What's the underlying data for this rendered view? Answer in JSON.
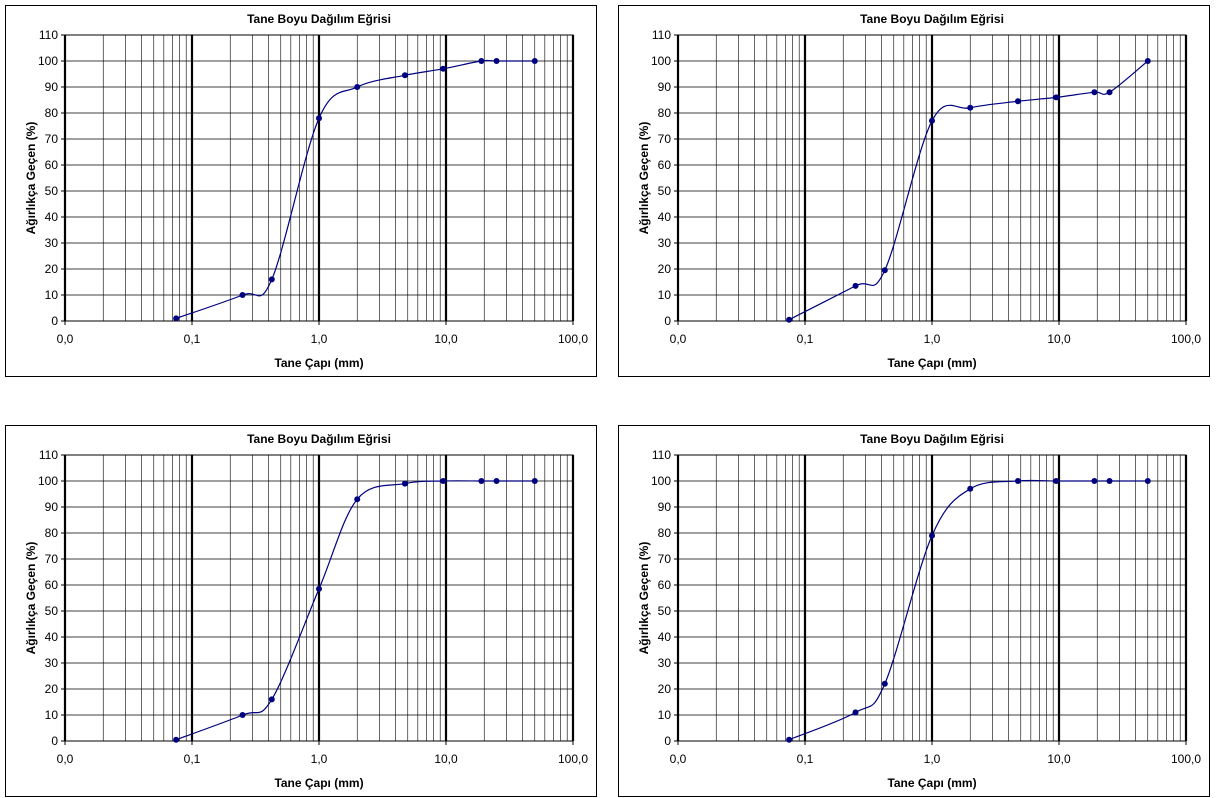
{
  "chart_data": [
    {
      "type": "line",
      "title": "Tane Boyu Dağılım Eğrisi",
      "xlabel": "Tane Çapı (mm)",
      "ylabel": "Ağırlıkça Geçen (%)",
      "x_scale": "log",
      "xlim": [
        0.01,
        100
      ],
      "ylim": [
        0,
        110
      ],
      "x_tick_values": [
        0.01,
        0.1,
        1,
        10,
        100
      ],
      "x_tick_labels": [
        "0,0",
        "0,1",
        "1,0",
        "10,0",
        "100,0"
      ],
      "y_ticks": [
        0,
        10,
        20,
        30,
        40,
        50,
        60,
        70,
        80,
        90,
        100,
        110
      ],
      "grid": true,
      "series": [
        {
          "color": "#000080",
          "x": [
            0.075,
            0.25,
            0.425,
            1.0,
            2.0,
            4.75,
            9.5,
            19.0,
            25.0,
            50.0
          ],
          "y": [
            1,
            10,
            16,
            78,
            90,
            94.5,
            97,
            100,
            100,
            100
          ]
        }
      ]
    },
    {
      "type": "line",
      "title": "Tane Boyu Dağılım Eğrisi",
      "xlabel": "Tane Çapı (mm)",
      "ylabel": "Ağırlıkça Geçen (%)",
      "x_scale": "log",
      "xlim": [
        0.01,
        100
      ],
      "ylim": [
        0,
        110
      ],
      "x_tick_values": [
        0.01,
        0.1,
        1,
        10,
        100
      ],
      "x_tick_labels": [
        "0,0",
        "0,1",
        "1,0",
        "10,0",
        "100,0"
      ],
      "y_ticks": [
        0,
        10,
        20,
        30,
        40,
        50,
        60,
        70,
        80,
        90,
        100,
        110
      ],
      "grid": true,
      "series": [
        {
          "color": "#000080",
          "x": [
            0.075,
            0.25,
            0.425,
            1.0,
            2.0,
            4.75,
            9.5,
            19.0,
            25.0,
            50.0
          ],
          "y": [
            0.5,
            13.5,
            19.5,
            77,
            82,
            84.5,
            86,
            88,
            88,
            100
          ]
        }
      ]
    },
    {
      "type": "line",
      "title": "Tane Boyu Dağılım Eğrisi",
      "xlabel": "Tane Çapı (mm)",
      "ylabel": "Ağırlıkça Geçen (%)",
      "x_scale": "log",
      "xlim": [
        0.01,
        100
      ],
      "ylim": [
        0,
        110
      ],
      "x_tick_values": [
        0.01,
        0.1,
        1,
        10,
        100
      ],
      "x_tick_labels": [
        "0,0",
        "0,1",
        "1,0",
        "10,0",
        "100,0"
      ],
      "y_ticks": [
        0,
        10,
        20,
        30,
        40,
        50,
        60,
        70,
        80,
        90,
        100,
        110
      ],
      "grid": true,
      "series": [
        {
          "color": "#000080",
          "x": [
            0.075,
            0.25,
            0.425,
            1.0,
            2.0,
            4.75,
            9.5,
            19.0,
            25.0,
            50.0
          ],
          "y": [
            0.5,
            10,
            16,
            58.5,
            93,
            99,
            100,
            100,
            100,
            100
          ]
        }
      ]
    },
    {
      "type": "line",
      "title": "Tane Boyu Dağılım Eğrisi",
      "xlabel": "Tane Çapı (mm)",
      "ylabel": "Ağırlıkça Geçen (%)",
      "x_scale": "log",
      "xlim": [
        0.01,
        100
      ],
      "ylim": [
        0,
        110
      ],
      "x_tick_values": [
        0.01,
        0.1,
        1,
        10,
        100
      ],
      "x_tick_labels": [
        "0,0",
        "0,1",
        "1,0",
        "10,0",
        "100,0"
      ],
      "y_ticks": [
        0,
        10,
        20,
        30,
        40,
        50,
        60,
        70,
        80,
        90,
        100,
        110
      ],
      "grid": true,
      "series": [
        {
          "color": "#000080",
          "x": [
            0.075,
            0.25,
            0.425,
            1.0,
            2.0,
            4.75,
            9.5,
            19.0,
            25.0,
            50.0
          ],
          "y": [
            0.5,
            11,
            22,
            79,
            97,
            100,
            100,
            100,
            100,
            100
          ]
        }
      ]
    }
  ]
}
